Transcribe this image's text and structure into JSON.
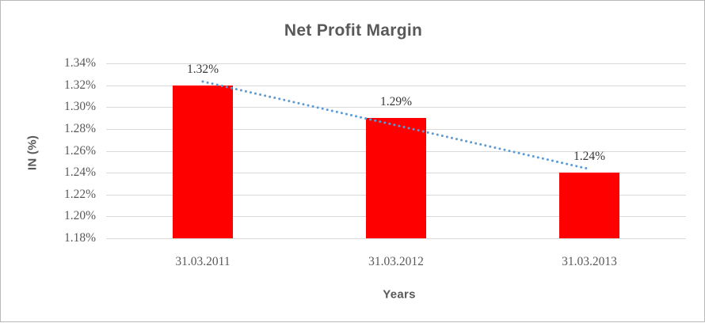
{
  "chart_data": {
    "type": "bar",
    "title": "Net Profit Margin",
    "xlabel": "Years",
    "ylabel": "IN (%)",
    "categories": [
      "31.03.2011",
      "31.03.2012",
      "31.03.2013"
    ],
    "values": [
      1.32,
      1.29,
      1.24
    ],
    "data_labels": [
      "1.32%",
      "1.29%",
      "1.24%"
    ],
    "yticks": [
      "1.34%",
      "1.32%",
      "1.30%",
      "1.28%",
      "1.26%",
      "1.24%",
      "1.22%",
      "1.20%",
      "1.18%"
    ],
    "ylim": [
      1.18,
      1.34
    ],
    "grid": "horizontal",
    "legend": "none",
    "trendline": {
      "type": "linear",
      "style": "dotted"
    }
  },
  "colors": {
    "bar": "#FF0000",
    "trendline": "#5B9BD5",
    "gridline": "#D9D9D9",
    "title_text": "#595959",
    "axis_text": "#595959",
    "data_label_text": "#363636",
    "background": "#FFFFFF",
    "border": "#B9B9B9"
  }
}
